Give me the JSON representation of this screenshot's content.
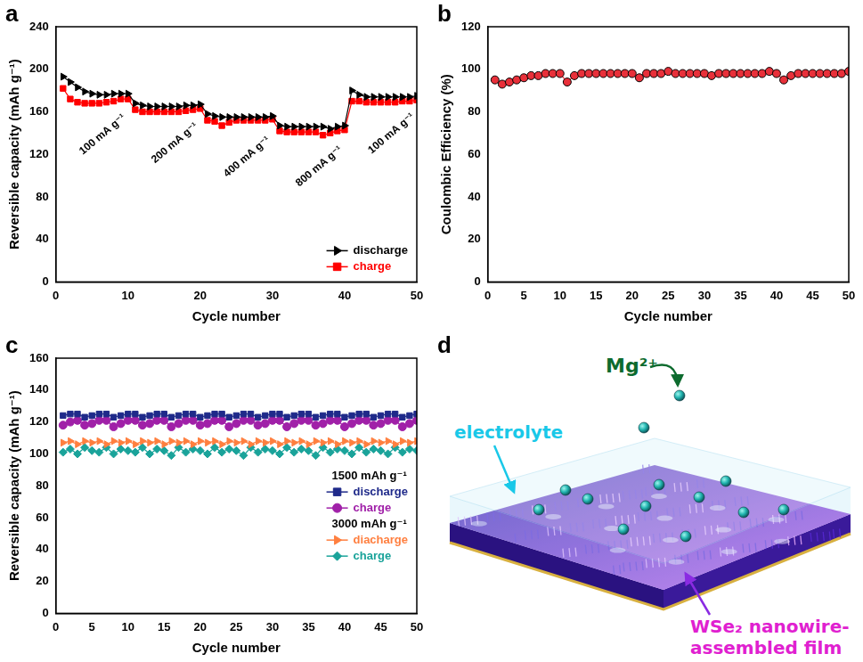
{
  "chart_data": [
    {
      "panel": "a",
      "type": "line",
      "x_label": "Cycle number",
      "y_label": "Reversible capacity (mAh g⁻¹)",
      "x": [
        1,
        2,
        3,
        4,
        5,
        6,
        7,
        8,
        9,
        10,
        11,
        12,
        13,
        14,
        15,
        16,
        17,
        18,
        19,
        20,
        21,
        22,
        23,
        24,
        25,
        26,
        27,
        28,
        29,
        30,
        31,
        32,
        33,
        34,
        35,
        36,
        37,
        38,
        39,
        40,
        41,
        42,
        43,
        44,
        45,
        46,
        47,
        48,
        49,
        50
      ],
      "xlim": [
        0,
        50
      ],
      "xticks": [
        0,
        10,
        20,
        30,
        40,
        50
      ],
      "ylim": [
        0,
        240
      ],
      "yticks": [
        0,
        40,
        80,
        120,
        160,
        200,
        240
      ],
      "grid": false,
      "legend": "lower right",
      "annotations": [
        "100 mA g⁻¹",
        "200 mA g⁻¹",
        "400 mA g⁻¹",
        "800 mA g⁻¹",
        "100 mA g⁻¹"
      ],
      "series": [
        {
          "name": "discharge",
          "color": "#000000",
          "marker": "triangle_right",
          "line_style": "solid",
          "values": [
            193,
            188,
            183,
            179,
            177,
            176,
            176,
            177,
            177,
            177,
            168,
            166,
            165,
            165,
            165,
            165,
            165,
            166,
            166,
            167,
            158,
            156,
            155,
            155,
            155,
            155,
            155,
            155,
            155,
            156,
            147,
            146,
            146,
            146,
            146,
            146,
            146,
            144,
            146,
            147,
            180,
            176,
            174,
            174,
            174,
            174,
            174,
            174,
            174,
            175
          ]
        },
        {
          "name": "charge",
          "color": "#ff0000",
          "marker": "square",
          "line_style": "solid",
          "values": [
            182,
            172,
            169,
            168,
            168,
            168,
            169,
            170,
            172,
            172,
            162,
            160,
            160,
            160,
            160,
            160,
            160,
            161,
            162,
            163,
            152,
            151,
            147,
            150,
            152,
            152,
            152,
            152,
            152,
            153,
            142,
            141,
            141,
            141,
            141,
            141,
            138,
            140,
            142,
            143,
            170,
            170,
            169,
            169,
            169,
            169,
            169,
            170,
            170,
            171
          ]
        }
      ]
    },
    {
      "panel": "b",
      "type": "line",
      "x_label": "Cycle number",
      "y_label": "Coulombic Efficiency (%)",
      "x": [
        1,
        2,
        3,
        4,
        5,
        6,
        7,
        8,
        9,
        10,
        11,
        12,
        13,
        14,
        15,
        16,
        17,
        18,
        19,
        20,
        21,
        22,
        23,
        24,
        25,
        26,
        27,
        28,
        29,
        30,
        31,
        32,
        33,
        34,
        35,
        36,
        37,
        38,
        39,
        40,
        41,
        42,
        43,
        44,
        45,
        46,
        47,
        48,
        49,
        50
      ],
      "xlim": [
        0,
        50
      ],
      "xticks": [
        0,
        5,
        10,
        15,
        20,
        25,
        30,
        35,
        40,
        45,
        50
      ],
      "ylim": [
        0,
        120
      ],
      "yticks": [
        0,
        20,
        40,
        60,
        80,
        100,
        120
      ],
      "grid": false,
      "series": [
        {
          "name": "Coulombic Efficiency",
          "color": "#e8303a",
          "marker": "circle",
          "line_style": "solid",
          "values": [
            95,
            93,
            94,
            95,
            96,
            97,
            97,
            98,
            98,
            98,
            94,
            97,
            98,
            98,
            98,
            98,
            98,
            98,
            98,
            98,
            96,
            98,
            98,
            98,
            99,
            98,
            98,
            98,
            98,
            98,
            97,
            98,
            98,
            98,
            98,
            98,
            98,
            98,
            99,
            98,
            95,
            97,
            98,
            98,
            98,
            98,
            98,
            98,
            98,
            99
          ]
        }
      ]
    },
    {
      "panel": "c",
      "type": "line",
      "x_label": "Cycle number",
      "y_label": "Reversible capacity (mAh g⁻¹)",
      "x": [
        1,
        2,
        3,
        4,
        5,
        6,
        7,
        8,
        9,
        10,
        11,
        12,
        13,
        14,
        15,
        16,
        17,
        18,
        19,
        20,
        21,
        22,
        23,
        24,
        25,
        26,
        27,
        28,
        29,
        30,
        31,
        32,
        33,
        34,
        35,
        36,
        37,
        38,
        39,
        40,
        41,
        42,
        43,
        44,
        45,
        46,
        47,
        48,
        49,
        50
      ],
      "xlim": [
        0,
        50
      ],
      "xticks": [
        0,
        5,
        10,
        15,
        20,
        25,
        30,
        35,
        40,
        45,
        50
      ],
      "ylim": [
        0,
        160
      ],
      "yticks": [
        0,
        20,
        40,
        60,
        80,
        100,
        120,
        140,
        160
      ],
      "grid": false,
      "legend": "center right",
      "series": [
        {
          "name": "discharge",
          "group": "1500 mAh g⁻¹",
          "color": "#1f2a8a",
          "marker": "square",
          "line_style": "solid",
          "values": [
            124,
            125,
            125,
            123,
            124,
            125,
            125,
            123,
            124,
            125,
            125,
            123,
            124,
            125,
            125,
            123,
            124,
            125,
            125,
            123,
            124,
            125,
            125,
            123,
            124,
            125,
            125,
            123,
            124,
            125,
            125,
            123,
            124,
            125,
            125,
            123,
            124,
            125,
            125,
            123,
            124,
            125,
            125,
            123,
            124,
            125,
            125,
            123,
            124,
            125
          ]
        },
        {
          "name": "charge",
          "group": "1500 mAh g⁻¹",
          "color": "#a020a8",
          "marker": "circle",
          "line_style": "solid",
          "values": [
            118,
            120,
            121,
            118,
            119,
            121,
            121,
            117,
            119,
            121,
            121,
            118,
            119,
            121,
            121,
            117,
            119,
            121,
            121,
            118,
            119,
            121,
            121,
            117,
            119,
            121,
            121,
            118,
            119,
            121,
            121,
            117,
            119,
            121,
            121,
            118,
            119,
            121,
            121,
            117,
            119,
            121,
            121,
            118,
            119,
            121,
            121,
            117,
            119,
            121
          ]
        },
        {
          "name": "diacharge",
          "group": "3000 mAh g⁻¹",
          "color": "#ff7f3f",
          "marker": "triangle_right",
          "line_style": "solid",
          "values": [
            107,
            108,
            106,
            108,
            107,
            108,
            106,
            108,
            107,
            108,
            106,
            108,
            107,
            108,
            106,
            108,
            107,
            108,
            106,
            108,
            107,
            108,
            106,
            108,
            107,
            108,
            106,
            108,
            107,
            108,
            106,
            108,
            107,
            108,
            106,
            108,
            107,
            108,
            106,
            108,
            107,
            108,
            106,
            108,
            107,
            108,
            106,
            108,
            107,
            108
          ]
        },
        {
          "name": "charge",
          "group": "3000 mAh g⁻¹",
          "color": "#1aa39a",
          "marker": "diamond",
          "line_style": "solid",
          "values": [
            101,
            103,
            100,
            104,
            102,
            101,
            104,
            100,
            103,
            102,
            101,
            104,
            100,
            103,
            102,
            99,
            104,
            101,
            103,
            102,
            100,
            104,
            101,
            103,
            102,
            99,
            104,
            101,
            103,
            102,
            100,
            104,
            101,
            103,
            102,
            99,
            104,
            101,
            103,
            102,
            100,
            104,
            101,
            103,
            102,
            100,
            104,
            101,
            103,
            102
          ]
        }
      ]
    }
  ],
  "illustration": {
    "panel": "d",
    "ion_label": "Mg²⁺",
    "electrolyte_label": "electrolyte",
    "film_label": "WSe₂ nanowire-assembled film"
  }
}
